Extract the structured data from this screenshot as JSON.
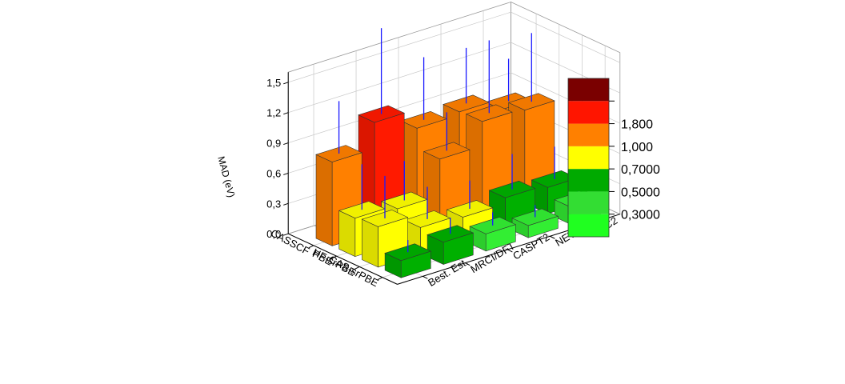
{
  "chart_data": {
    "type": "bar3d",
    "zlabel": "MAD (eV)",
    "zlim": [
      0,
      1.6
    ],
    "z_ticks": [
      "0,0",
      "0,3",
      "0,6",
      "0,9",
      "1,2",
      "1,5"
    ],
    "z_tick_values": [
      0,
      0.3,
      0.6,
      0.9,
      1.2,
      1.5
    ],
    "x_categories": [
      "CASSCF",
      "PBE",
      "HF-srPBE",
      "CAS-srPBE"
    ],
    "y_categories": [
      "CC2",
      "NEVPT2",
      "CASPT2",
      "MRCI/DFT",
      "Best. Est."
    ],
    "grid": true,
    "legend_position": "right",
    "bars": [
      {
        "x": "CASSCF",
        "y": "Best. Est.",
        "value": 0.83,
        "error": 0.52,
        "color": "#ff8000"
      },
      {
        "x": "CASSCF",
        "y": "MRCI/DFT",
        "value": 1.09,
        "error": 0.85,
        "color": "#ff1a00"
      },
      {
        "x": "CASSCF",
        "y": "CASPT2",
        "value": 0.9,
        "error": 0.62,
        "color": "#ff8000"
      },
      {
        "x": "CASSCF",
        "y": "NEVPT2",
        "value": 0.93,
        "error": 0.55,
        "color": "#ff8000"
      },
      {
        "x": "CASSCF",
        "y": "CC2",
        "value": 0.82,
        "error": 0.42,
        "color": "#ff8000"
      },
      {
        "x": "PBE",
        "y": "Best. Est.",
        "value": 0.38,
        "error": 0.45,
        "color": "#ffff00"
      },
      {
        "x": "PBE",
        "y": "MRCI/DFT",
        "value": 0.34,
        "error": 0.39,
        "color": "#ffff00"
      },
      {
        "x": "PBE",
        "y": "CASPT2",
        "value": 0.7,
        "error": 0.38,
        "color": "#ff8000"
      },
      {
        "x": "PBE",
        "y": "NEVPT2",
        "value": 0.94,
        "error": 0.72,
        "color": "#ff8000"
      },
      {
        "x": "PBE",
        "y": "CC2",
        "value": 0.92,
        "error": 0.68,
        "color": "#ff8000"
      },
      {
        "x": "HF-srPBE",
        "y": "Best. Est.",
        "value": 0.4,
        "error": 0.42,
        "color": "#ffff00"
      },
      {
        "x": "HF-srPBE",
        "y": "MRCI/DFT",
        "value": 0.26,
        "error": 0.32,
        "color": "#ffff00"
      },
      {
        "x": "HF-srPBE",
        "y": "CASPT2",
        "value": 0.23,
        "error": 0.28,
        "color": "#ffff00"
      },
      {
        "x": "HF-srPBE",
        "y": "NEVPT2",
        "value": 0.29,
        "error": 0.35,
        "color": "#00b000"
      },
      {
        "x": "HF-srPBE",
        "y": "CC2",
        "value": 0.26,
        "error": 0.32,
        "color": "#00b000"
      },
      {
        "x": "CAS-srPBE",
        "y": "Best. Est.",
        "value": 0.17,
        "error": 0.12,
        "color": "#00b000"
      },
      {
        "x": "CAS-srPBE",
        "y": "MRCI/DFT",
        "value": 0.22,
        "error": 0.16,
        "color": "#00b000"
      },
      {
        "x": "CAS-srPBE",
        "y": "CASPT2",
        "value": 0.17,
        "error": 0.13,
        "color": "#33ee33"
      },
      {
        "x": "CAS-srPBE",
        "y": "NEVPT2",
        "value": 0.12,
        "error": 0.12,
        "color": "#33ee33"
      },
      {
        "x": "CAS-srPBE",
        "y": "CC2",
        "value": 0.17,
        "error": 0.2,
        "color": "#33ee33"
      }
    ],
    "colorscale": [
      {
        "color": "#20ff20",
        "label": ""
      },
      {
        "color": "#33dd33",
        "label": "0,3000"
      },
      {
        "color": "#00aa00",
        "label": "0,5000"
      },
      {
        "color": "#ffff00",
        "label": "0,7000"
      },
      {
        "color": "#ff8000",
        "label": "1,000"
      },
      {
        "color": "#ff1500",
        "label": "1,800"
      },
      {
        "color": "#7a0000",
        "label": ""
      }
    ],
    "error_bar_color": "#1a1aff"
  }
}
